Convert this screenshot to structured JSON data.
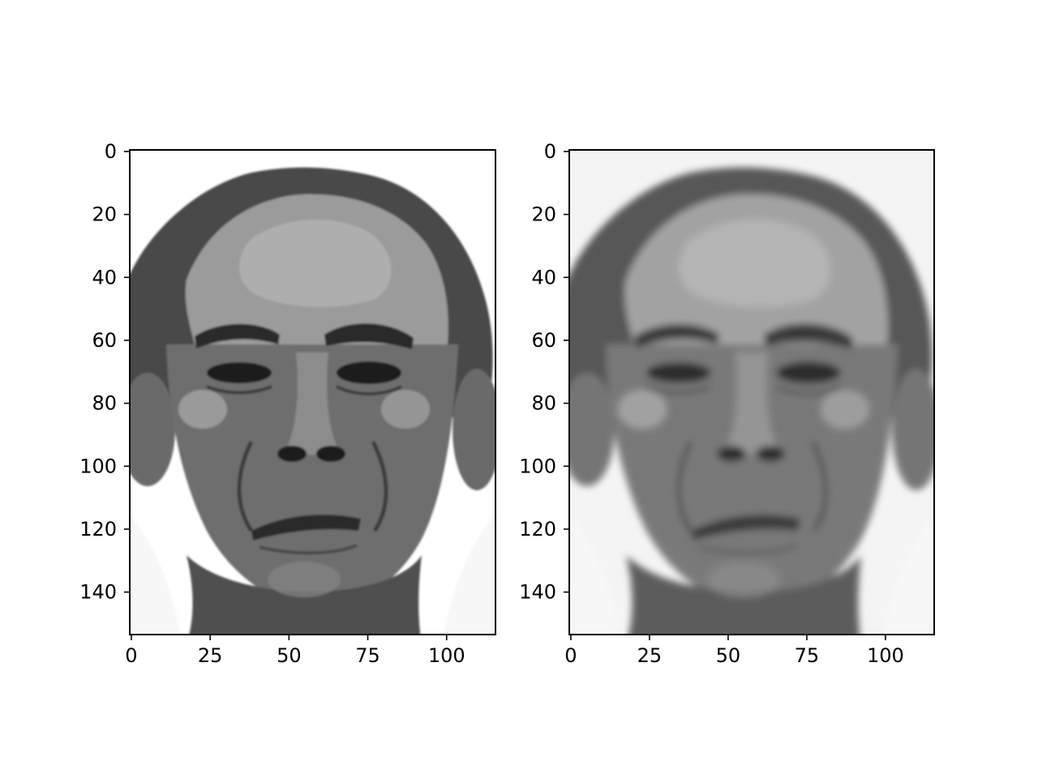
{
  "figure": {
    "background": "#ffffff",
    "panels": [
      {
        "name": "original-image",
        "content": "grayscale-face-photo"
      },
      {
        "name": "reconstructed-image",
        "content": "grayscale-face-photo-blurred"
      }
    ]
  },
  "chart_data": [
    {
      "type": "image",
      "title": "",
      "xlabel": "",
      "ylabel": "",
      "xlim": [
        -0.5,
        115.5
      ],
      "ylim": [
        153.5,
        -0.5
      ],
      "xticks": [
        0,
        25,
        50,
        75,
        100
      ],
      "yticks": [
        0,
        20,
        40,
        60,
        80,
        100,
        120,
        140
      ],
      "xticklabels": [
        "0",
        "25",
        "50",
        "75",
        "100"
      ],
      "yticklabels": [
        "0",
        "20",
        "40",
        "60",
        "80",
        "100",
        "120",
        "140"
      ],
      "colormap": "gray",
      "grid": false
    },
    {
      "type": "image",
      "title": "",
      "xlabel": "",
      "ylabel": "",
      "xlim": [
        -0.5,
        115.5
      ],
      "ylim": [
        153.5,
        -0.5
      ],
      "xticks": [
        0,
        25,
        50,
        75,
        100
      ],
      "yticks": [
        0,
        20,
        40,
        60,
        80,
        100,
        120,
        140
      ],
      "xticklabels": [
        "0",
        "25",
        "50",
        "75",
        "100"
      ],
      "yticklabels": [
        "0",
        "20",
        "40",
        "60",
        "80",
        "100",
        "120",
        "140"
      ],
      "colormap": "gray",
      "grid": false
    }
  ]
}
